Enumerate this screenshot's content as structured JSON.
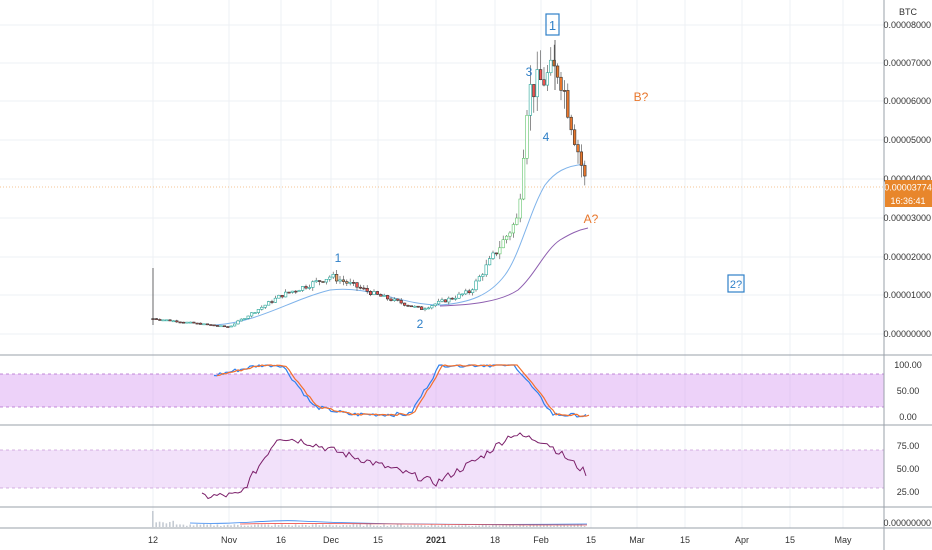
{
  "currency_label": "BTC",
  "last_price_label": "0.00003774",
  "countdown_label": "16:36:41",
  "colors": {
    "up": "#26a69a",
    "up_wave": "#5fc36a",
    "down": "#ef5350",
    "wave_count_color": "#2f80c8",
    "projection_color": "#e8762b",
    "highlight_candle": "#f0a46a",
    "ma_fast": "#7fb3ea",
    "ma_slow": "#8e5fb0",
    "stoch_k": "#2f80ed",
    "stoch_d": "#f2702e",
    "rsi_line": "#7b1f6a",
    "band_stoch": "#d89cf2",
    "band_rsi": "#e8c8f5",
    "price_line": "#f0a050"
  },
  "price_axis": {
    "ticks": [
      "0.00008000",
      "0.00007000",
      "0.00006000",
      "0.00005000",
      "0.00004000",
      "0.00003000",
      "0.00002000",
      "0.00001000",
      "0.00000000"
    ]
  },
  "stoch_axis": {
    "ticks": [
      "100.00",
      "50.00",
      "0.00"
    ]
  },
  "rsi_axis": {
    "ticks": [
      "75.00",
      "50.00",
      "25.00"
    ]
  },
  "volume_axis": {
    "ticks": [
      "0.00000000"
    ]
  },
  "time_axis": {
    "labels": [
      "12",
      "Nov",
      "16",
      "Dec",
      "15",
      "2021",
      "18",
      "Feb",
      "15",
      "Mar",
      "15",
      "Apr",
      "15",
      "May"
    ]
  },
  "annotations": {
    "wave_1_box": "1",
    "wave_1_small": "1",
    "wave_2": "2",
    "wave_3": "3",
    "wave_4": "4",
    "b_projection": "B?",
    "a_projection": "A?",
    "wave_2_projection": "2?"
  },
  "chart_data": {
    "type": "candlestick",
    "symbol_quote": "BTC",
    "price_ylim": [
      0,
      8.2e-05
    ],
    "last_price": 3.774e-05,
    "moving_averages": [
      {
        "values": "fast MA (light blue), rising from ~0.0000020 to ~0.0000430"
      },
      {
        "values": "slow MA (purple), rising from ~0.0000070 to ~0.0000270"
      }
    ],
    "price_path_approx": [
      {
        "x": "Oct 12",
        "y": 4e-06
      },
      {
        "x": "Nov 1",
        "y": 1.8e-06
      },
      {
        "x": "Nov 16",
        "y": 1e-05
      },
      {
        "x": "Nov 27",
        "y": 1.5e-05
      },
      {
        "x": "Dec 15",
        "y": 1e-05
      },
      {
        "x": "Dec 26",
        "y": 6.5e-06
      },
      {
        "x": "Jan 10",
        "y": 1.1e-05
      },
      {
        "x": "Jan 24",
        "y": 3e-05
      },
      {
        "x": "Jan 29",
        "y": 6.3e-05
      },
      {
        "x": "Feb 6",
        "y": 6.9e-05
      },
      {
        "x": "Feb 14",
        "y": 3.77e-05
      }
    ],
    "stoch_ylim": [
      0,
      100
    ],
    "stoch_band": [
      20,
      80
    ],
    "stoch_k_approx": [
      {
        "x": "Oct 26",
        "y": 80
      },
      {
        "x": "Nov 10",
        "y": 100
      },
      {
        "x": "Nov 20",
        "y": 100
      },
      {
        "x": "Dec 1",
        "y": 20
      },
      {
        "x": "Dec 10",
        "y": 5
      },
      {
        "x": "Dec 28",
        "y": 5
      },
      {
        "x": "Jan 3",
        "y": 100
      },
      {
        "x": "Jan 26",
        "y": 100
      },
      {
        "x": "Feb 5",
        "y": 5
      },
      {
        "x": "Feb 14",
        "y": 2
      }
    ],
    "rsi_ylim": [
      10,
      90
    ],
    "rsi_band": [
      30,
      70
    ],
    "rsi_approx": [
      {
        "x": "Oct 26",
        "y": 20
      },
      {
        "x": "Nov 6",
        "y": 22
      },
      {
        "x": "Nov 16",
        "y": 85
      },
      {
        "x": "Nov 27",
        "y": 80
      },
      {
        "x": "Dec 15",
        "y": 55
      },
      {
        "x": "Jan 1",
        "y": 35
      },
      {
        "x": "Jan 15",
        "y": 62
      },
      {
        "x": "Jan 31",
        "y": 88
      },
      {
        "x": "Feb 8",
        "y": 80
      },
      {
        "x": "Feb 14",
        "y": 45
      }
    ]
  }
}
